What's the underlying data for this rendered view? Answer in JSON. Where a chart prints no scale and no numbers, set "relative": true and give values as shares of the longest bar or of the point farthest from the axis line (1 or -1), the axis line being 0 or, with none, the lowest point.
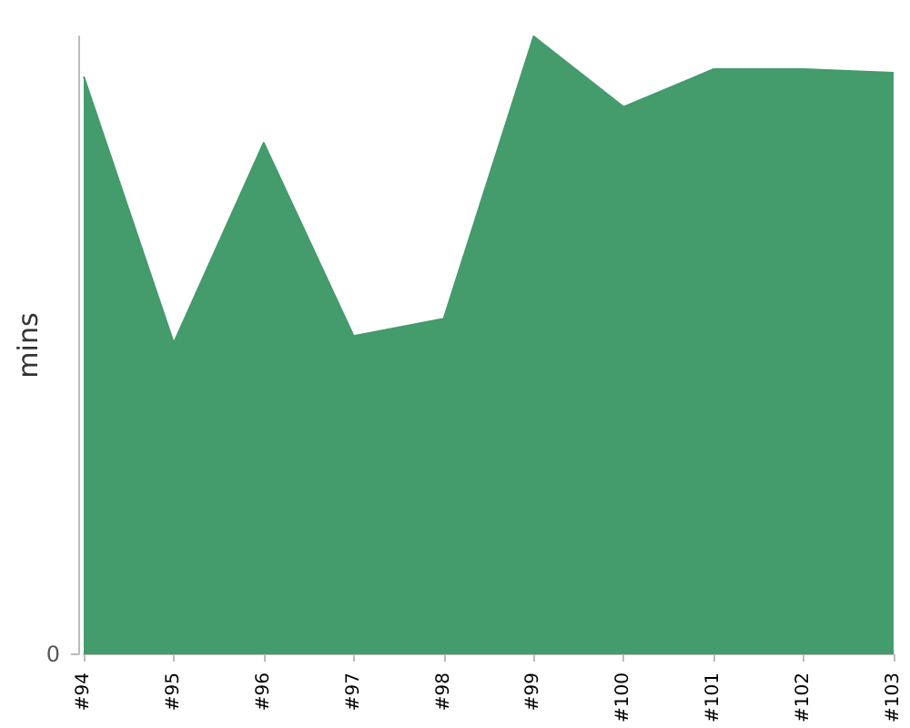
{
  "chart_data": {
    "type": "area",
    "ylabel": "mins",
    "categories": [
      "#94",
      "#95",
      "#96",
      "#97",
      "#98",
      "#99",
      "#100",
      "#101",
      "#102",
      "#103"
    ],
    "values": [
      0.935,
      0.504,
      0.828,
      0.515,
      0.543,
      1,
      0.886,
      0.947,
      0.947,
      0.941
    ],
    "color": "#449b6c",
    "relative": true,
    "annotations": [
      "0"
    ]
  }
}
